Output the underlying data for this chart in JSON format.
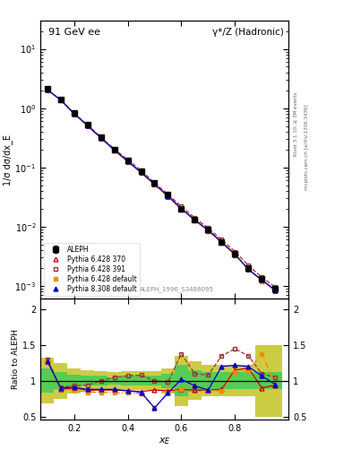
{
  "title_left": "91 GeV ee",
  "title_right": "γ*/Z (Hadronic)",
  "ylabel_main": "1/σ dσ/dx_E",
  "ylabel_ratio": "Ratio to ALEPH",
  "xlabel": "x_E",
  "rivet_label": "Rivet 3.1.10, ≥ 3M events",
  "inspire_label": "mcplots.cern.ch [arXiv:1306.3436]",
  "dataset_label": "ALEPH_1996_S3486095",
  "xE": [
    0.1,
    0.15,
    0.2,
    0.25,
    0.3,
    0.35,
    0.4,
    0.45,
    0.5,
    0.55,
    0.6,
    0.65,
    0.7,
    0.75,
    0.8,
    0.85,
    0.9,
    0.95
  ],
  "aleph_y": [
    2.1,
    1.4,
    0.82,
    0.52,
    0.32,
    0.2,
    0.13,
    0.085,
    0.055,
    0.035,
    0.02,
    0.013,
    0.009,
    0.0055,
    0.0035,
    0.002,
    0.0013,
    0.0009
  ],
  "aleph_yerr": [
    0.08,
    0.04,
    0.025,
    0.015,
    0.01,
    0.006,
    0.004,
    0.003,
    0.002,
    0.0015,
    0.001,
    0.0007,
    0.0005,
    0.0003,
    0.0002,
    0.00012,
    9e-05,
    7e-05
  ],
  "p6_370_y": [
    2.05,
    1.38,
    0.81,
    0.51,
    0.315,
    0.197,
    0.127,
    0.083,
    0.052,
    0.033,
    0.02,
    0.013,
    0.0087,
    0.0055,
    0.0034,
    0.0019,
    0.00125,
    0.00085
  ],
  "p6_391_y": [
    2.05,
    1.38,
    0.82,
    0.525,
    0.325,
    0.205,
    0.135,
    0.088,
    0.055,
    0.035,
    0.022,
    0.014,
    0.0095,
    0.006,
    0.0038,
    0.0022,
    0.0014,
    0.00095
  ],
  "p6_def_y": [
    2.05,
    1.37,
    0.8,
    0.505,
    0.31,
    0.193,
    0.124,
    0.081,
    0.051,
    0.032,
    0.0195,
    0.0127,
    0.0084,
    0.0053,
    0.0033,
    0.0019,
    0.0012,
    0.00083
  ],
  "p8_def_y": [
    2.05,
    1.38,
    0.81,
    0.51,
    0.315,
    0.197,
    0.127,
    0.082,
    0.052,
    0.033,
    0.02,
    0.013,
    0.0087,
    0.0055,
    0.0034,
    0.0019,
    0.00125,
    0.00085
  ],
  "ratio_p6_370": [
    1.3,
    0.88,
    0.9,
    0.87,
    0.87,
    0.87,
    0.86,
    0.85,
    0.87,
    0.86,
    0.88,
    0.87,
    0.87,
    0.88,
    1.15,
    1.18,
    0.9,
    0.94
  ],
  "ratio_p6_391": [
    1.3,
    0.91,
    0.93,
    0.94,
    1.0,
    1.05,
    1.07,
    1.08,
    1.0,
    0.98,
    1.38,
    1.1,
    1.08,
    1.35,
    1.45,
    1.35,
    1.1,
    1.05
  ],
  "ratio_p6_def": [
    1.27,
    0.88,
    0.87,
    0.84,
    0.84,
    0.83,
    0.83,
    0.82,
    0.62,
    0.83,
    0.88,
    0.94,
    0.86,
    0.86,
    1.12,
    1.15,
    1.38,
    0.95
  ],
  "ratio_p8_def": [
    1.28,
    0.9,
    0.91,
    0.88,
    0.88,
    0.88,
    0.86,
    0.84,
    0.62,
    0.83,
    1.02,
    0.93,
    0.87,
    1.2,
    1.22,
    1.2,
    1.07,
    0.95
  ],
  "band_x_lo": [
    0.075,
    0.125,
    0.175,
    0.225,
    0.275,
    0.325,
    0.375,
    0.425,
    0.475,
    0.525,
    0.575,
    0.625,
    0.675,
    0.725,
    0.775,
    0.825,
    0.875,
    0.925
  ],
  "band_x_hi": [
    0.125,
    0.175,
    0.225,
    0.275,
    0.325,
    0.375,
    0.425,
    0.475,
    0.525,
    0.575,
    0.625,
    0.675,
    0.725,
    0.775,
    0.825,
    0.875,
    0.925,
    0.975
  ],
  "band_green_lo": [
    0.83,
    0.88,
    0.92,
    0.93,
    0.93,
    0.95,
    0.93,
    0.93,
    0.93,
    0.9,
    0.78,
    0.85,
    0.88,
    0.88,
    0.88,
    0.88,
    0.88,
    0.88
  ],
  "band_green_hi": [
    1.17,
    1.12,
    1.08,
    1.07,
    1.07,
    1.05,
    1.07,
    1.07,
    1.07,
    1.1,
    1.22,
    1.15,
    1.12,
    1.12,
    1.12,
    1.12,
    1.12,
    1.12
  ],
  "band_yellow_lo": [
    0.68,
    0.75,
    0.82,
    0.85,
    0.87,
    0.88,
    0.87,
    0.87,
    0.87,
    0.82,
    0.65,
    0.73,
    0.78,
    0.78,
    0.78,
    0.78,
    0.5,
    0.5
  ],
  "band_yellow_hi": [
    1.32,
    1.25,
    1.18,
    1.15,
    1.13,
    1.12,
    1.13,
    1.13,
    1.13,
    1.18,
    1.35,
    1.27,
    1.22,
    1.22,
    1.22,
    1.22,
    1.5,
    1.5
  ],
  "color_p6_370": "#cc0000",
  "color_p6_391": "#993333",
  "color_p6_def": "#ff8800",
  "color_p8_def": "#0000cc",
  "color_aleph": "#000000",
  "color_green": "#55cc55",
  "color_yellow": "#cccc44",
  "ylim_main": [
    0.0006,
    30
  ],
  "ylim_ratio": [
    0.45,
    2.15
  ],
  "xlim": [
    0.075,
    1.0
  ]
}
